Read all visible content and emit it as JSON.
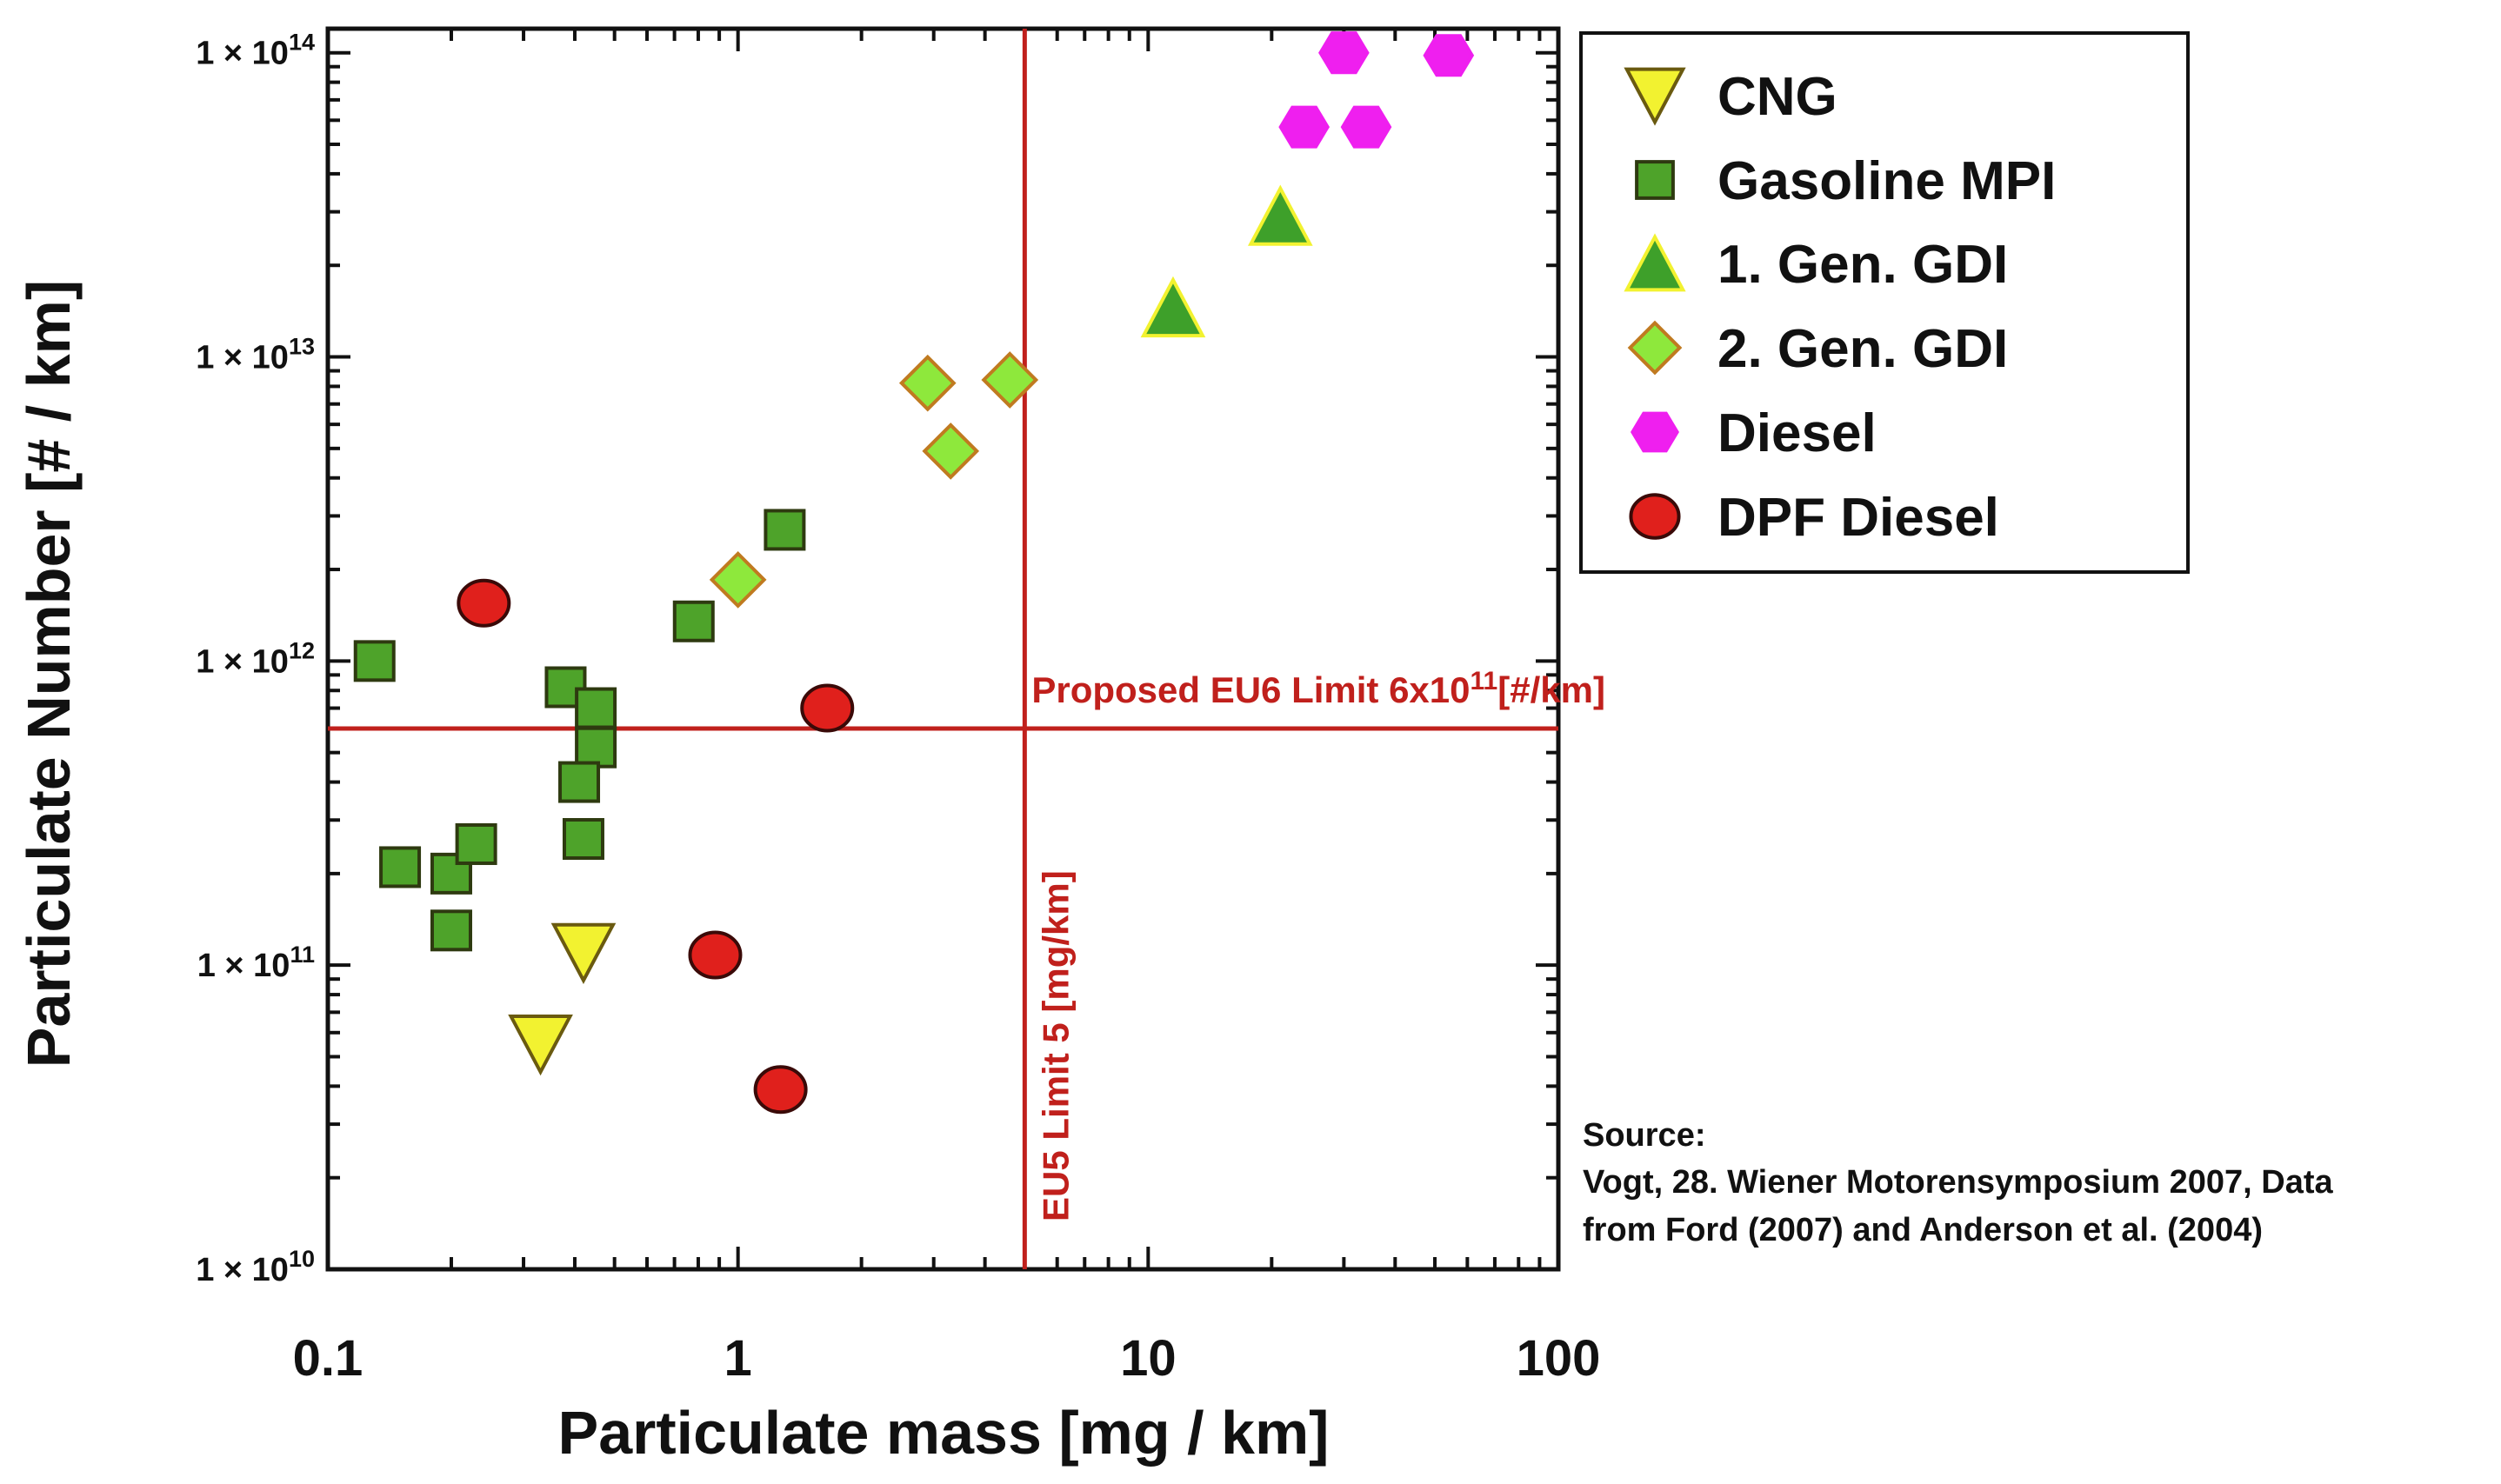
{
  "chart_data": {
    "type": "scatter",
    "xlabel": "Particulate mass [mg / km]",
    "ylabel": "Particulate Number [# / km]",
    "xscale": "log",
    "yscale": "log",
    "xlim": [
      0.1,
      100
    ],
    "ylim": [
      10000000000.0,
      120000000000000.0
    ],
    "x_ticks": [
      0.1,
      1,
      10,
      100
    ],
    "x_tick_labels": [
      "0.1",
      "1",
      "10",
      "100"
    ],
    "y_ticks": [
      10000000000.0,
      100000000000.0,
      1000000000000.0,
      10000000000000.0,
      100000000000000.0
    ],
    "y_tick_labels": [
      {
        "base": "1 × 10",
        "exp": "10"
      },
      {
        "base": "1 × 10",
        "exp": "11"
      },
      {
        "base": "1 × 10",
        "exp": "12"
      },
      {
        "base": "1 × 10",
        "exp": "13"
      },
      {
        "base": "1 × 10",
        "exp": "14"
      }
    ],
    "legend_position": "outside-top-right",
    "series": [
      {
        "name": "CNG",
        "marker": "triangle-down",
        "color": "#f2f230",
        "points": [
          [
            0.42,
            110000000000.0
          ],
          [
            0.33,
            55000000000.0
          ]
        ]
      },
      {
        "name": "Gasoline MPI",
        "marker": "square",
        "color": "#4ea32a",
        "points": [
          [
            0.13,
            1000000000000.0
          ],
          [
            0.15,
            210000000000.0
          ],
          [
            0.2,
            200000000000.0
          ],
          [
            0.2,
            130000000000.0
          ],
          [
            0.23,
            250000000000.0
          ],
          [
            0.38,
            820000000000.0
          ],
          [
            0.45,
            700000000000.0
          ],
          [
            0.45,
            520000000000.0
          ],
          [
            0.41,
            400000000000.0
          ],
          [
            0.42,
            260000000000.0
          ],
          [
            0.78,
            1350000000000.0
          ],
          [
            1.3,
            2700000000000.0
          ]
        ]
      },
      {
        "name": "1. Gen. GDI",
        "marker": "triangle-up",
        "color": "#3ea02a",
        "points": [
          [
            11.5,
            14500000000000.0
          ],
          [
            21,
            29000000000000.0
          ]
        ]
      },
      {
        "name": "2. Gen. GDI",
        "marker": "diamond",
        "color": "#8ee83c",
        "points": [
          [
            1.0,
            1850000000000.0
          ],
          [
            2.9,
            8200000000000.0
          ],
          [
            3.3,
            4900000000000.0
          ],
          [
            4.6,
            8400000000000.0
          ]
        ]
      },
      {
        "name": "Diesel",
        "marker": "hexagon",
        "color": "#ef1fef",
        "points": [
          [
            30,
            100000000000000.0
          ],
          [
            54,
            98000000000000.0
          ],
          [
            24,
            57000000000000.0
          ],
          [
            34,
            57000000000000.0
          ]
        ]
      },
      {
        "name": "DPF Diesel",
        "marker": "circle",
        "color": "#e0201c",
        "points": [
          [
            0.24,
            1550000000000.0
          ],
          [
            1.65,
            700000000000.0
          ],
          [
            0.88,
            108000000000.0
          ],
          [
            1.27,
            39000000000.0
          ]
        ]
      }
    ],
    "reference_lines": {
      "horizontal": {
        "value": 600000000000.0,
        "color": "#c0201c",
        "label": "Proposed EU6 Limit 6x10",
        "label_sup": "11",
        "label_suffix": "[#/km]"
      },
      "vertical": {
        "value": 5,
        "color": "#c0201c",
        "label": "EU5 Limit 5 [mg/km]"
      }
    },
    "annotation": {
      "heading": "Source:",
      "lines": [
        "Vogt, 28. Wiener Motorensymposium 2007, Data",
        "from Ford (2007) and Anderson et al. (2004)"
      ]
    }
  }
}
